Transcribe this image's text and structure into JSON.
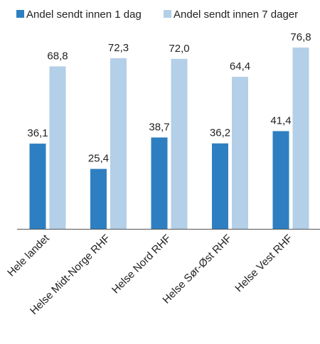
{
  "chart_data": {
    "type": "bar",
    "categories": [
      "Hele landet",
      "Helse Midt-Norge RHF",
      "Helse Nord RHF",
      "Helse Sør-Øst RHF",
      "Helse Vest RHF"
    ],
    "series": [
      {
        "name": "Andel sendt innen 1 dag",
        "values": [
          36.1,
          25.4,
          38.7,
          36.2,
          41.4
        ],
        "labels": [
          "36,1",
          "25,4",
          "38,7",
          "36,2",
          "41,4"
        ],
        "color": "#2e7fc1"
      },
      {
        "name": "Andel sendt innen 7 dager",
        "values": [
          68.8,
          72.3,
          72.0,
          64.4,
          76.8
        ],
        "labels": [
          "68,8",
          "72,3",
          "72,0",
          "64,4",
          "76,8"
        ],
        "color": "#b4cfe8"
      }
    ],
    "title": "",
    "xlabel": "",
    "ylabel": "",
    "ylim": [
      0,
      90
    ],
    "grid": false,
    "legend_position": "top",
    "axis_color": "#555555"
  }
}
